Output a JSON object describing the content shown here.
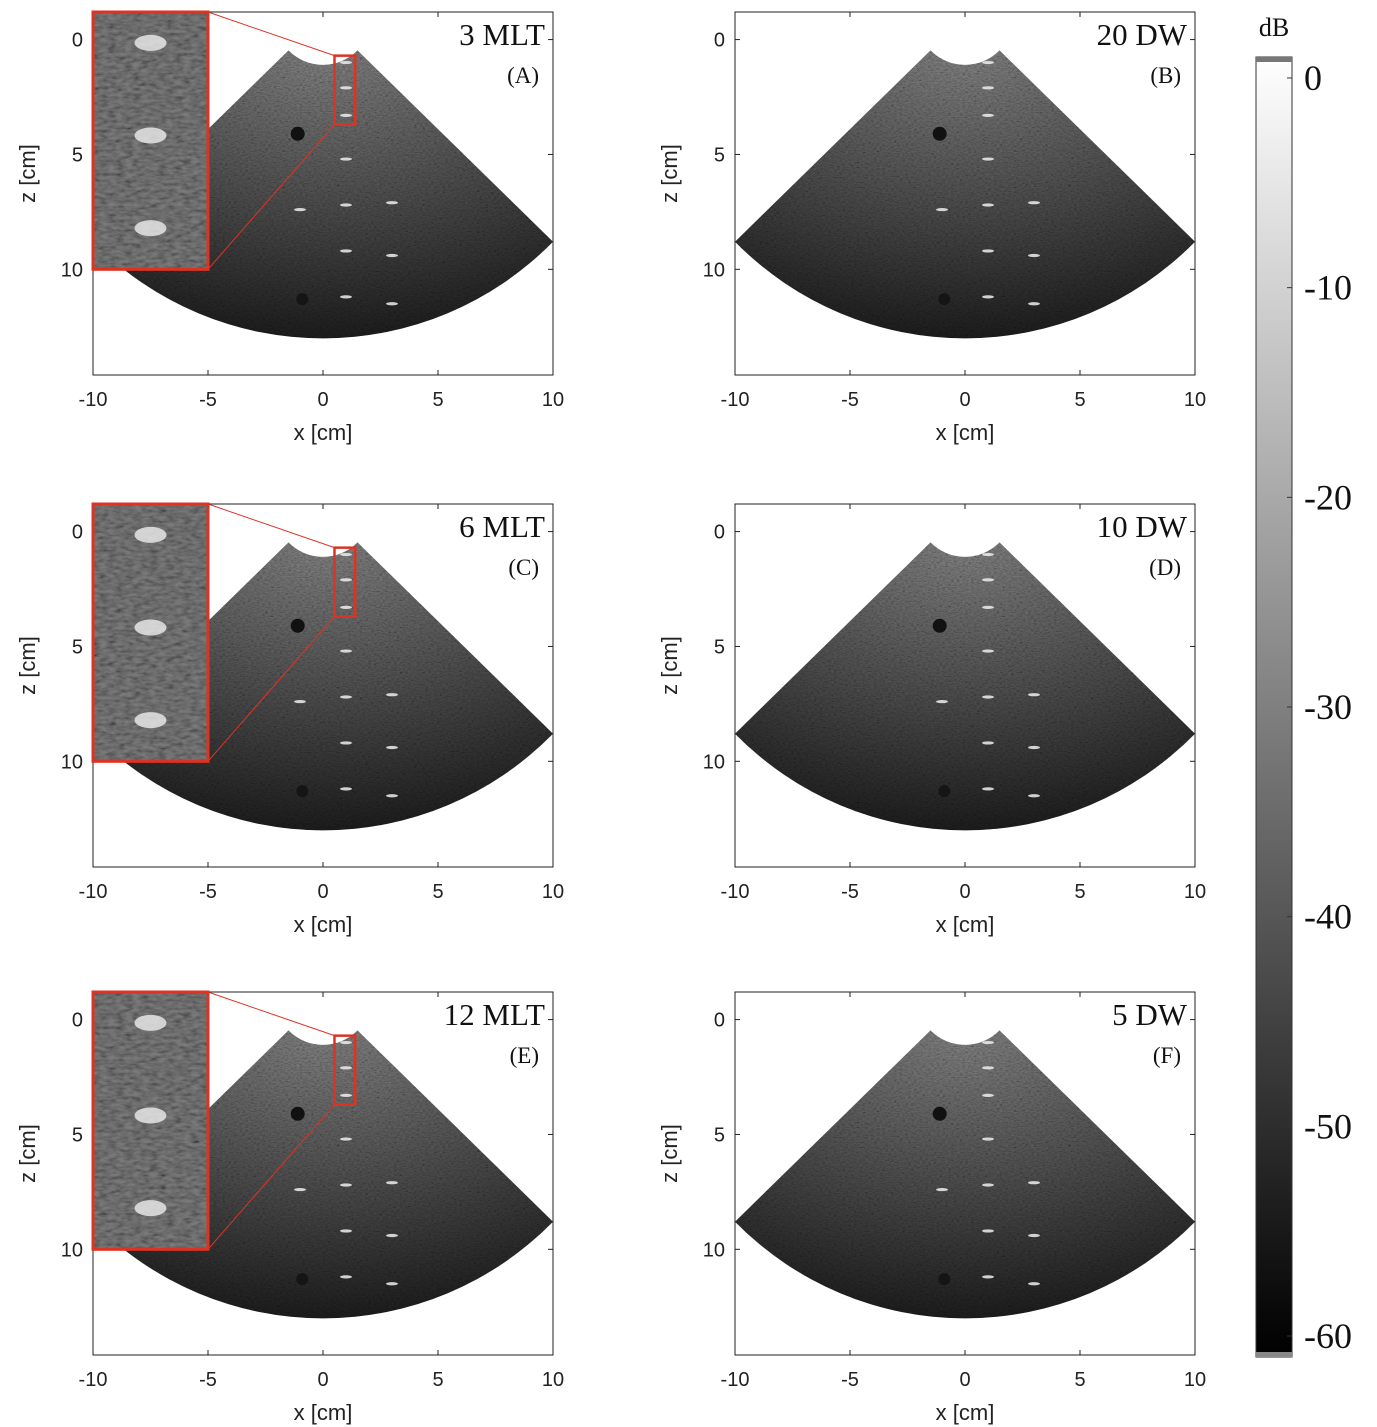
{
  "chart_data": [
    {
      "type": "ultrasound",
      "title": "3 MLT",
      "subtitle": "(A)",
      "xlabel": "x [cm]",
      "ylabel": "z [cm]",
      "xlim": [
        -10,
        10
      ],
      "ylim": [
        -1.2,
        14.6
      ],
      "xticks": [
        -10,
        -5,
        0,
        5,
        10
      ],
      "yticks": [
        0,
        5,
        10
      ],
      "zoom_inset": true
    },
    {
      "type": "ultrasound",
      "title": "20 DW",
      "subtitle": "(B)",
      "xlabel": "x [cm]",
      "ylabel": "z [cm]",
      "xlim": [
        -10,
        10
      ],
      "ylim": [
        -1.2,
        14.6
      ],
      "xticks": [
        -10,
        -5,
        0,
        5,
        10
      ],
      "yticks": [
        0,
        5,
        10
      ],
      "zoom_inset": false
    },
    {
      "type": "ultrasound",
      "title": "6 MLT",
      "subtitle": "(C)",
      "xlabel": "x [cm]",
      "ylabel": "z [cm]",
      "xlim": [
        -10,
        10
      ],
      "ylim": [
        -1.2,
        14.6
      ],
      "xticks": [
        -10,
        -5,
        0,
        5,
        10
      ],
      "yticks": [
        0,
        5,
        10
      ],
      "zoom_inset": true
    },
    {
      "type": "ultrasound",
      "title": "10 DW",
      "subtitle": "(D)",
      "xlabel": "x [cm]",
      "ylabel": "z [cm]",
      "xlim": [
        -10,
        10
      ],
      "ylim": [
        -1.2,
        14.6
      ],
      "xticks": [
        -10,
        -5,
        0,
        5,
        10
      ],
      "yticks": [
        0,
        5,
        10
      ],
      "zoom_inset": false
    },
    {
      "type": "ultrasound",
      "title": "12 MLT",
      "subtitle": "(E)",
      "xlabel": "x [cm]",
      "ylabel": "z [cm]",
      "xlim": [
        -10,
        10
      ],
      "ylim": [
        -1.2,
        14.6
      ],
      "xticks": [
        -10,
        -5,
        0,
        5,
        10
      ],
      "yticks": [
        0,
        5,
        10
      ],
      "zoom_inset": true
    },
    {
      "type": "ultrasound",
      "title": "5 DW",
      "subtitle": "(F)",
      "xlabel": "x [cm]",
      "ylabel": "z [cm]",
      "xlim": [
        -10,
        10
      ],
      "ylim": [
        -1.2,
        14.6
      ],
      "xticks": [
        -10,
        -5,
        0,
        5,
        10
      ],
      "yticks": [
        0,
        5,
        10
      ],
      "zoom_inset": false
    },
    {
      "type": "colorbar",
      "label": "dB",
      "clim": [
        -61,
        1
      ],
      "ticks": [
        0,
        -10,
        -20,
        -30,
        -40,
        -50,
        -60
      ],
      "colormap": "gray"
    }
  ]
}
